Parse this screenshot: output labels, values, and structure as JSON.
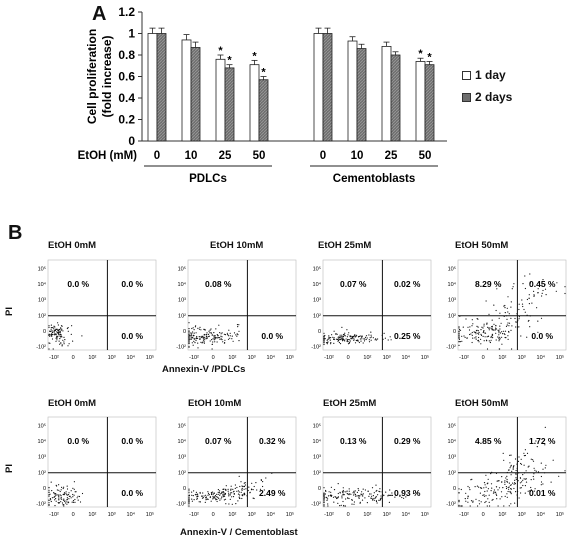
{
  "panel_a_label": "A",
  "panel_b_label": "B",
  "chart_data": [
    {
      "type": "bar",
      "ylabel": "Cell proliferation (fold increase)",
      "ylabel_lines": [
        "Cell proliferation",
        "(fold increase)"
      ],
      "xlabel": "EtOH (mM)",
      "ylim": [
        0,
        1.2
      ],
      "yticks": [
        0,
        0.2,
        0.4,
        0.6,
        0.8,
        1,
        1.2
      ],
      "ytick_labels": [
        "0",
        "0.2",
        "0.4",
        "0.6",
        "0.8",
        "1",
        "1.2"
      ],
      "groups": [
        {
          "name": "PDLCs",
          "categories": [
            "0",
            "10",
            "25",
            "50"
          ],
          "series": [
            {
              "name": "1 day",
              "values": [
                1.0,
                0.94,
                0.76,
                0.71
              ],
              "errors": [
                0.05,
                0.05,
                0.04,
                0.04
              ],
              "significant": [
                false,
                false,
                true,
                true
              ]
            },
            {
              "name": "2 days",
              "values": [
                1.0,
                0.87,
                0.68,
                0.57
              ],
              "errors": [
                0.05,
                0.05,
                0.03,
                0.03
              ],
              "significant": [
                false,
                false,
                true,
                true
              ]
            }
          ]
        },
        {
          "name": "Cementoblasts",
          "categories": [
            "0",
            "10",
            "25",
            "50"
          ],
          "series": [
            {
              "name": "1 day",
              "values": [
                1.0,
                0.93,
                0.88,
                0.74
              ],
              "errors": [
                0.05,
                0.04,
                0.04,
                0.03
              ],
              "significant": [
                false,
                false,
                false,
                true
              ]
            },
            {
              "name": "2 days",
              "values": [
                1.0,
                0.86,
                0.8,
                0.71
              ],
              "errors": [
                0.05,
                0.04,
                0.03,
                0.03
              ],
              "significant": [
                false,
                false,
                false,
                true
              ]
            }
          ]
        }
      ],
      "significance_marker": "*",
      "legend": [
        "1 day",
        "2 days"
      ],
      "legend_position": "right"
    },
    {
      "type": "scatter",
      "description_rows": [
        {
          "xlabel": "Annexin-V /PDLCs",
          "ylabel": "PI",
          "plots": [
            {
              "title": "EtOH 0mM",
              "upper_left": "0.0 %",
              "upper_right": "0.0 %",
              "lower_right": "0.0 %",
              "lower_left": ""
            },
            {
              "title": "EtOH 10mM",
              "upper_left": "0.08 %",
              "upper_right": "",
              "lower_right": "0.0 %",
              "lower_left": ""
            },
            {
              "title": "EtOH 25mM",
              "upper_left": "0.07 %",
              "upper_right": "0.02 %",
              "lower_right": "0.25 %",
              "lower_left": ""
            },
            {
              "title": "EtOH 50mM",
              "upper_left": "8.29 %",
              "upper_right": "0.45 %",
              "lower_right": "0.0 %",
              "lower_left": ""
            }
          ]
        },
        {
          "xlabel": "Annexin-V / Cementoblast",
          "ylabel": "PI",
          "plots": [
            {
              "title": "EtOH 0mM",
              "upper_left": "0.0 %",
              "upper_right": "0.0 %",
              "lower_right": "0.0 %",
              "lower_left": ""
            },
            {
              "title": "EtOH 10mM",
              "upper_left": "0.07 %",
              "upper_right": "0.32 %",
              "lower_right": "2.49 %",
              "lower_left": ""
            },
            {
              "title": "EtOH 25mM",
              "upper_left": "0.13 %",
              "upper_right": "0.29 %",
              "lower_right": "0.93 %",
              "lower_left": ""
            },
            {
              "title": "EtOH 50mM",
              "upper_left": "4.85 %",
              "upper_right": "1.72 %",
              "lower_right": "0.01 %",
              "lower_left": ""
            }
          ]
        }
      ],
      "y_tick_labels": [
        "10⁵",
        "10⁴",
        "10³",
        "10²",
        "0",
        "-10²"
      ],
      "x_tick_labels": [
        "-10²",
        "0",
        "10²",
        "10³",
        "10⁴",
        "10⁵"
      ]
    }
  ],
  "colors": {
    "series_1": "#ffffff",
    "series_2": "#6e6e6e",
    "axis": "#333333",
    "dots": "#111111"
  }
}
